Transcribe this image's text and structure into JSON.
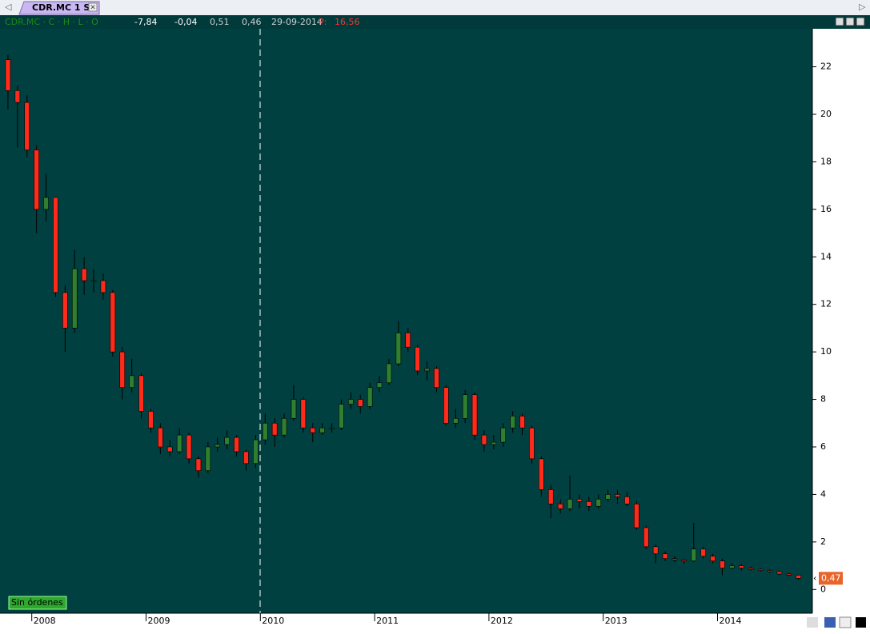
{
  "tab": {
    "label": "CDR.MC 1 S"
  },
  "info_bar": {
    "items": [
      "-7,84",
      "-0,04",
      "0,51",
      "0,46",
      "29-09-2014",
      "P:",
      "16,56"
    ]
  },
  "orders_button": {
    "label": "Sin órdenes"
  },
  "last_price": {
    "label": "0,47"
  },
  "chart_data": {
    "type": "candlestick",
    "categories": [
      null,
      null,
      null,
      "2008",
      null,
      null,
      null,
      null,
      null,
      null,
      null,
      null,
      null,
      null,
      null,
      "2009",
      null,
      null,
      null,
      null,
      null,
      null,
      null,
      null,
      null,
      null,
      null,
      "2010",
      null,
      null,
      null,
      null,
      null,
      null,
      null,
      null,
      null,
      null,
      null,
      "2011",
      null,
      null,
      null,
      null,
      null,
      null,
      null,
      null,
      null,
      null,
      null,
      "2012",
      null,
      null,
      null,
      null,
      null,
      null,
      null,
      null,
      null,
      null,
      null,
      "2013",
      null,
      null,
      null,
      null,
      null,
      null,
      null,
      null,
      null,
      null,
      null,
      "2014",
      null,
      null,
      null,
      null,
      null,
      null,
      null,
      null
    ],
    "open": [
      22.3,
      21,
      20.5,
      18.5,
      16,
      16.5,
      12.5,
      11,
      13.5,
      13,
      13,
      12.5,
      10,
      8.5,
      9,
      7.5,
      6.8,
      6,
      5.8,
      6.5,
      5.5,
      5,
      6,
      6.1,
      6.4,
      5.8,
      5.3,
      6.3,
      7,
      6.5,
      7.2,
      8,
      6.8,
      6.6,
      6.8,
      6.8,
      7.8,
      8,
      7.7,
      8.5,
      8.7,
      9.5,
      10.8,
      10.2,
      9.2,
      9.3,
      8.5,
      7,
      7.2,
      8.2,
      6.5,
      6.1,
      6.2,
      6.8,
      7.3,
      6.8,
      5.5,
      4.2,
      3.6,
      3.4,
      3.8,
      3.7,
      3.5,
      3.8,
      4,
      3.9,
      3.6,
      2.6,
      1.8,
      1.5,
      1.3,
      1.25,
      1.2,
      1.7,
      1.4,
      1.2,
      0.9,
      1,
      0.9,
      0.85,
      0.8,
      0.75,
      0.65,
      0.6
    ],
    "high": [
      22.5,
      21.2,
      20.8,
      18.7,
      17.5,
      16.5,
      12.8,
      14.3,
      14.0,
      13.5,
      13.3,
      12.6,
      10.2,
      9.7,
      9.1,
      7.6,
      7.0,
      6.3,
      6.8,
      6.6,
      5.6,
      6.2,
      6.4,
      6.7,
      6.5,
      5.9,
      6.5,
      7.4,
      7.2,
      7.4,
      8.6,
      8.1,
      7.0,
      7.0,
      7.0,
      8.0,
      8.3,
      8.2,
      8.7,
      9.0,
      9.7,
      11.3,
      11.0,
      10.3,
      9.6,
      9.4,
      8.6,
      7.6,
      8.4,
      8.3,
      6.7,
      6.5,
      7.0,
      7.5,
      7.4,
      6.9,
      5.6,
      4.4,
      3.8,
      4.8,
      4.0,
      3.9,
      4.0,
      4.2,
      4.2,
      4.1,
      3.7,
      2.7,
      1.9,
      1.6,
      1.4,
      1.3,
      2.8,
      1.8,
      1.5,
      1.3,
      1.1,
      1.1,
      0.95,
      0.9,
      0.85,
      0.8,
      0.7,
      0.62
    ],
    "low": [
      20.2,
      18.6,
      18.2,
      15.0,
      15.5,
      12.3,
      10.0,
      10.8,
      12.4,
      12.5,
      12.2,
      9.8,
      8.0,
      8.3,
      7.2,
      6.6,
      5.7,
      5.6,
      5.7,
      5.3,
      4.7,
      4.9,
      5.8,
      5.9,
      5.6,
      5.0,
      5.1,
      6.1,
      6.0,
      6.4,
      7.1,
      6.6,
      6.2,
      6.5,
      6.6,
      6.7,
      7.6,
      7.4,
      7.6,
      8.3,
      8.6,
      9.4,
      10.0,
      9.0,
      8.8,
      8.3,
      6.9,
      6.8,
      7.0,
      6.3,
      5.8,
      5.9,
      6.0,
      6.6,
      6.5,
      5.3,
      3.9,
      3.0,
      3.2,
      3.3,
      3.4,
      3.3,
      3.4,
      3.7,
      3.6,
      3.5,
      2.5,
      1.7,
      1.1,
      1.2,
      1.15,
      1.1,
      1.15,
      1.3,
      1.1,
      0.6,
      0.85,
      0.8,
      0.8,
      0.75,
      0.7,
      0.6,
      0.55,
      0.4
    ],
    "close": [
      21,
      20.5,
      18.5,
      16,
      16.5,
      12.5,
      11,
      13.5,
      13,
      13,
      12.5,
      10,
      8.5,
      9,
      7.5,
      6.8,
      6,
      5.8,
      6.5,
      5.5,
      5,
      6,
      6.1,
      6.4,
      5.8,
      5.3,
      6.3,
      7,
      6.5,
      7.2,
      8,
      6.8,
      6.6,
      6.8,
      6.8,
      7.8,
      8,
      7.7,
      8.5,
      8.7,
      9.5,
      10.8,
      10.2,
      9.2,
      9.3,
      8.5,
      7,
      7.2,
      8.2,
      6.5,
      6.1,
      6.2,
      6.8,
      7.3,
      6.8,
      5.5,
      4.2,
      3.6,
      3.4,
      3.8,
      3.7,
      3.5,
      3.8,
      4,
      3.9,
      3.6,
      2.6,
      1.8,
      1.5,
      1.3,
      1.25,
      1.2,
      1.7,
      1.4,
      1.2,
      0.9,
      1,
      0.9,
      0.85,
      0.8,
      0.75,
      0.65,
      0.6,
      0.47
    ],
    "up_color": "#2f7f2f",
    "down_color": "#ff2a1a",
    "ylim": [
      -1,
      23.6
    ],
    "yticks": [
      0,
      2,
      4,
      6,
      8,
      10,
      12,
      14,
      16,
      18,
      20,
      22
    ]
  }
}
